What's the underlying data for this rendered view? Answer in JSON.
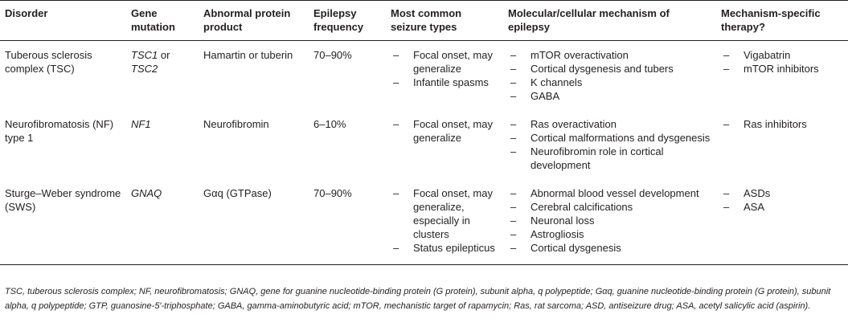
{
  "table": {
    "headers": [
      "Disorder",
      "Gene mutation",
      "Abnormal protein product",
      "Epilepsy frequency",
      "Most common seizure types",
      "Molecular/cellular mechanism of epilepsy",
      "Mechanism-specific therapy?"
    ],
    "rows": [
      {
        "disorder": "Tuberous sclerosis complex (TSC)",
        "gene_a": "TSC1",
        "gene_join": " or ",
        "gene_b": "TSC2",
        "protein": "Hamartin or tuberin",
        "frequency": "70–90%",
        "seizures": [
          "Focal onset, may generalize",
          "Infantile spasms"
        ],
        "mechanisms": [
          "mTOR overactivation",
          "Cortical dysgenesis and tubers",
          "K channels",
          "GABA"
        ],
        "therapies": [
          "Vigabatrin",
          "mTOR inhibitors"
        ]
      },
      {
        "disorder": "Neurofibromatosis (NF) type 1",
        "gene_a": "NF1",
        "gene_join": "",
        "gene_b": "",
        "protein": "Neurofibromin",
        "frequency": "6–10%",
        "seizures": [
          "Focal onset, may generalize"
        ],
        "mechanisms": [
          "Ras overactivation",
          "Cortical malformations and dysgenesis",
          "Neurofibromin role in cortical development"
        ],
        "therapies": [
          "Ras inhibitors"
        ]
      },
      {
        "disorder": "Sturge–Weber syndrome (SWS)",
        "gene_a": "GNAQ",
        "gene_join": "",
        "gene_b": "",
        "protein": "Gαq (GTPase)",
        "frequency": "70–90%",
        "seizures": [
          "Focal onset, may generalize, especially in clusters",
          "Status epilepticus"
        ],
        "mechanisms": [
          "Abnormal blood vessel development",
          "Cerebral calcifications",
          "Neuronal loss",
          "Astrogliosis",
          "Cortical dysgenesis"
        ],
        "therapies": [
          "ASDs",
          "ASA"
        ]
      }
    ]
  },
  "footnote": "TSC, tuberous sclerosis complex; NF, neurofibromatosis; GNAQ, gene for guanine nucleotide-binding protein (G protein), subunit alpha, q polypeptide; Gαq, guanine nucleotide-binding protein (G protein), subunit alpha, q polypeptide; GTP, guanosine-5′-triphosphate; GABA, gamma-aminobutyric acid; mTOR, mechanistic target of rapamycin; Ras, rat sarcoma; ASD, antiseizure drug; ASA, acetyl salicylic acid (aspirin)."
}
